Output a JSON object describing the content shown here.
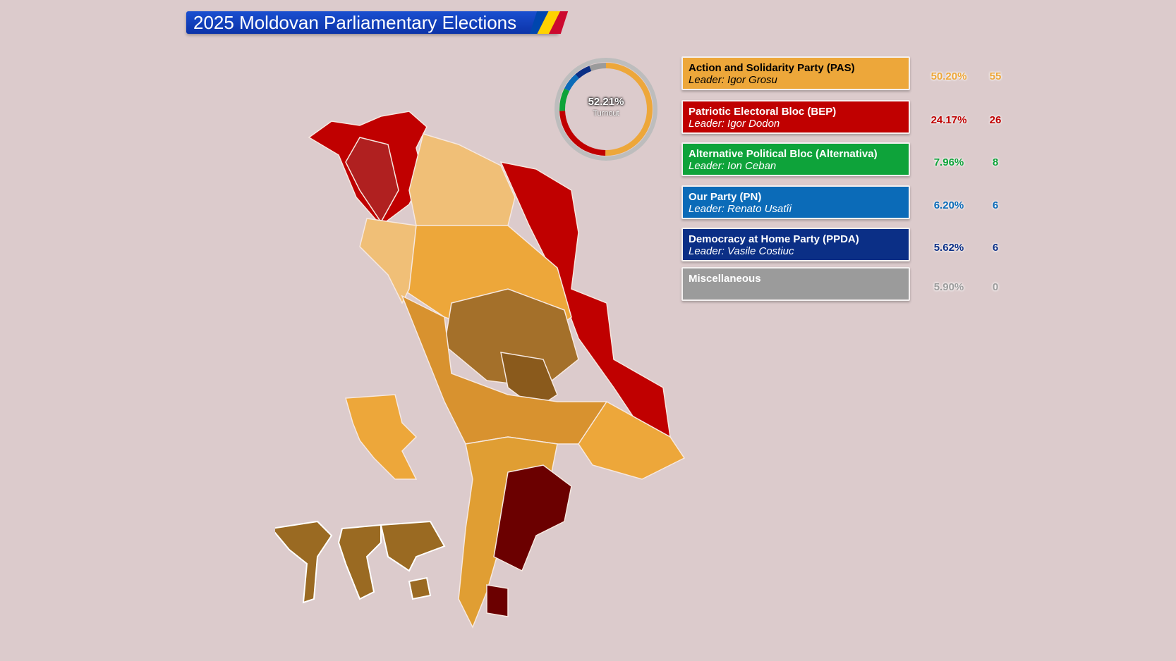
{
  "title": "2025 Moldovan Parliamentary Elections",
  "turnout": {
    "value": "52.21%",
    "label": "Turnout"
  },
  "parties": [
    {
      "name": "Action and Solidarity Party (PAS)",
      "leader": "Leader: Igor Grosu",
      "percent": "50.20%",
      "seats": "55",
      "color": "#eda73a",
      "text": "#000000"
    },
    {
      "name": "Patriotic Electoral Bloc (BEP)",
      "leader": "Leader: Igor Dodon",
      "percent": "24.17%",
      "seats": "26",
      "color": "#c00000",
      "text": "#ffffff"
    },
    {
      "name": "Alternative Political Bloc (Alternativa)",
      "leader": "Leader: Ion Ceban",
      "percent": "7.96%",
      "seats": "8",
      "color": "#0ea33a",
      "text": "#ffffff"
    },
    {
      "name": "Our Party (PN)",
      "leader": "Leader: Renato Usatîi",
      "percent": "6.20%",
      "seats": "6",
      "color": "#0b6bb8",
      "text": "#ffffff"
    },
    {
      "name": "Democracy at Home Party (PPDA)",
      "leader": "Leader: Vasile Costiuc",
      "percent": "5.62%",
      "seats": "6",
      "color": "#0b2f86",
      "text": "#ffffff"
    },
    {
      "name": "Miscellaneous",
      "leader": "",
      "percent": "5.90%",
      "seats": "0",
      "color": "#9b9b9b",
      "text": "#ffffff"
    }
  ],
  "map_colors": {
    "pas_strong": "#a4702a",
    "pas": "#eda73a",
    "pas_light": "#f0bf77",
    "bep": "#c00000",
    "bep_strong": "#6b0000",
    "bep_mid": "#b02020",
    "diaspora": "#9a6a22"
  }
}
